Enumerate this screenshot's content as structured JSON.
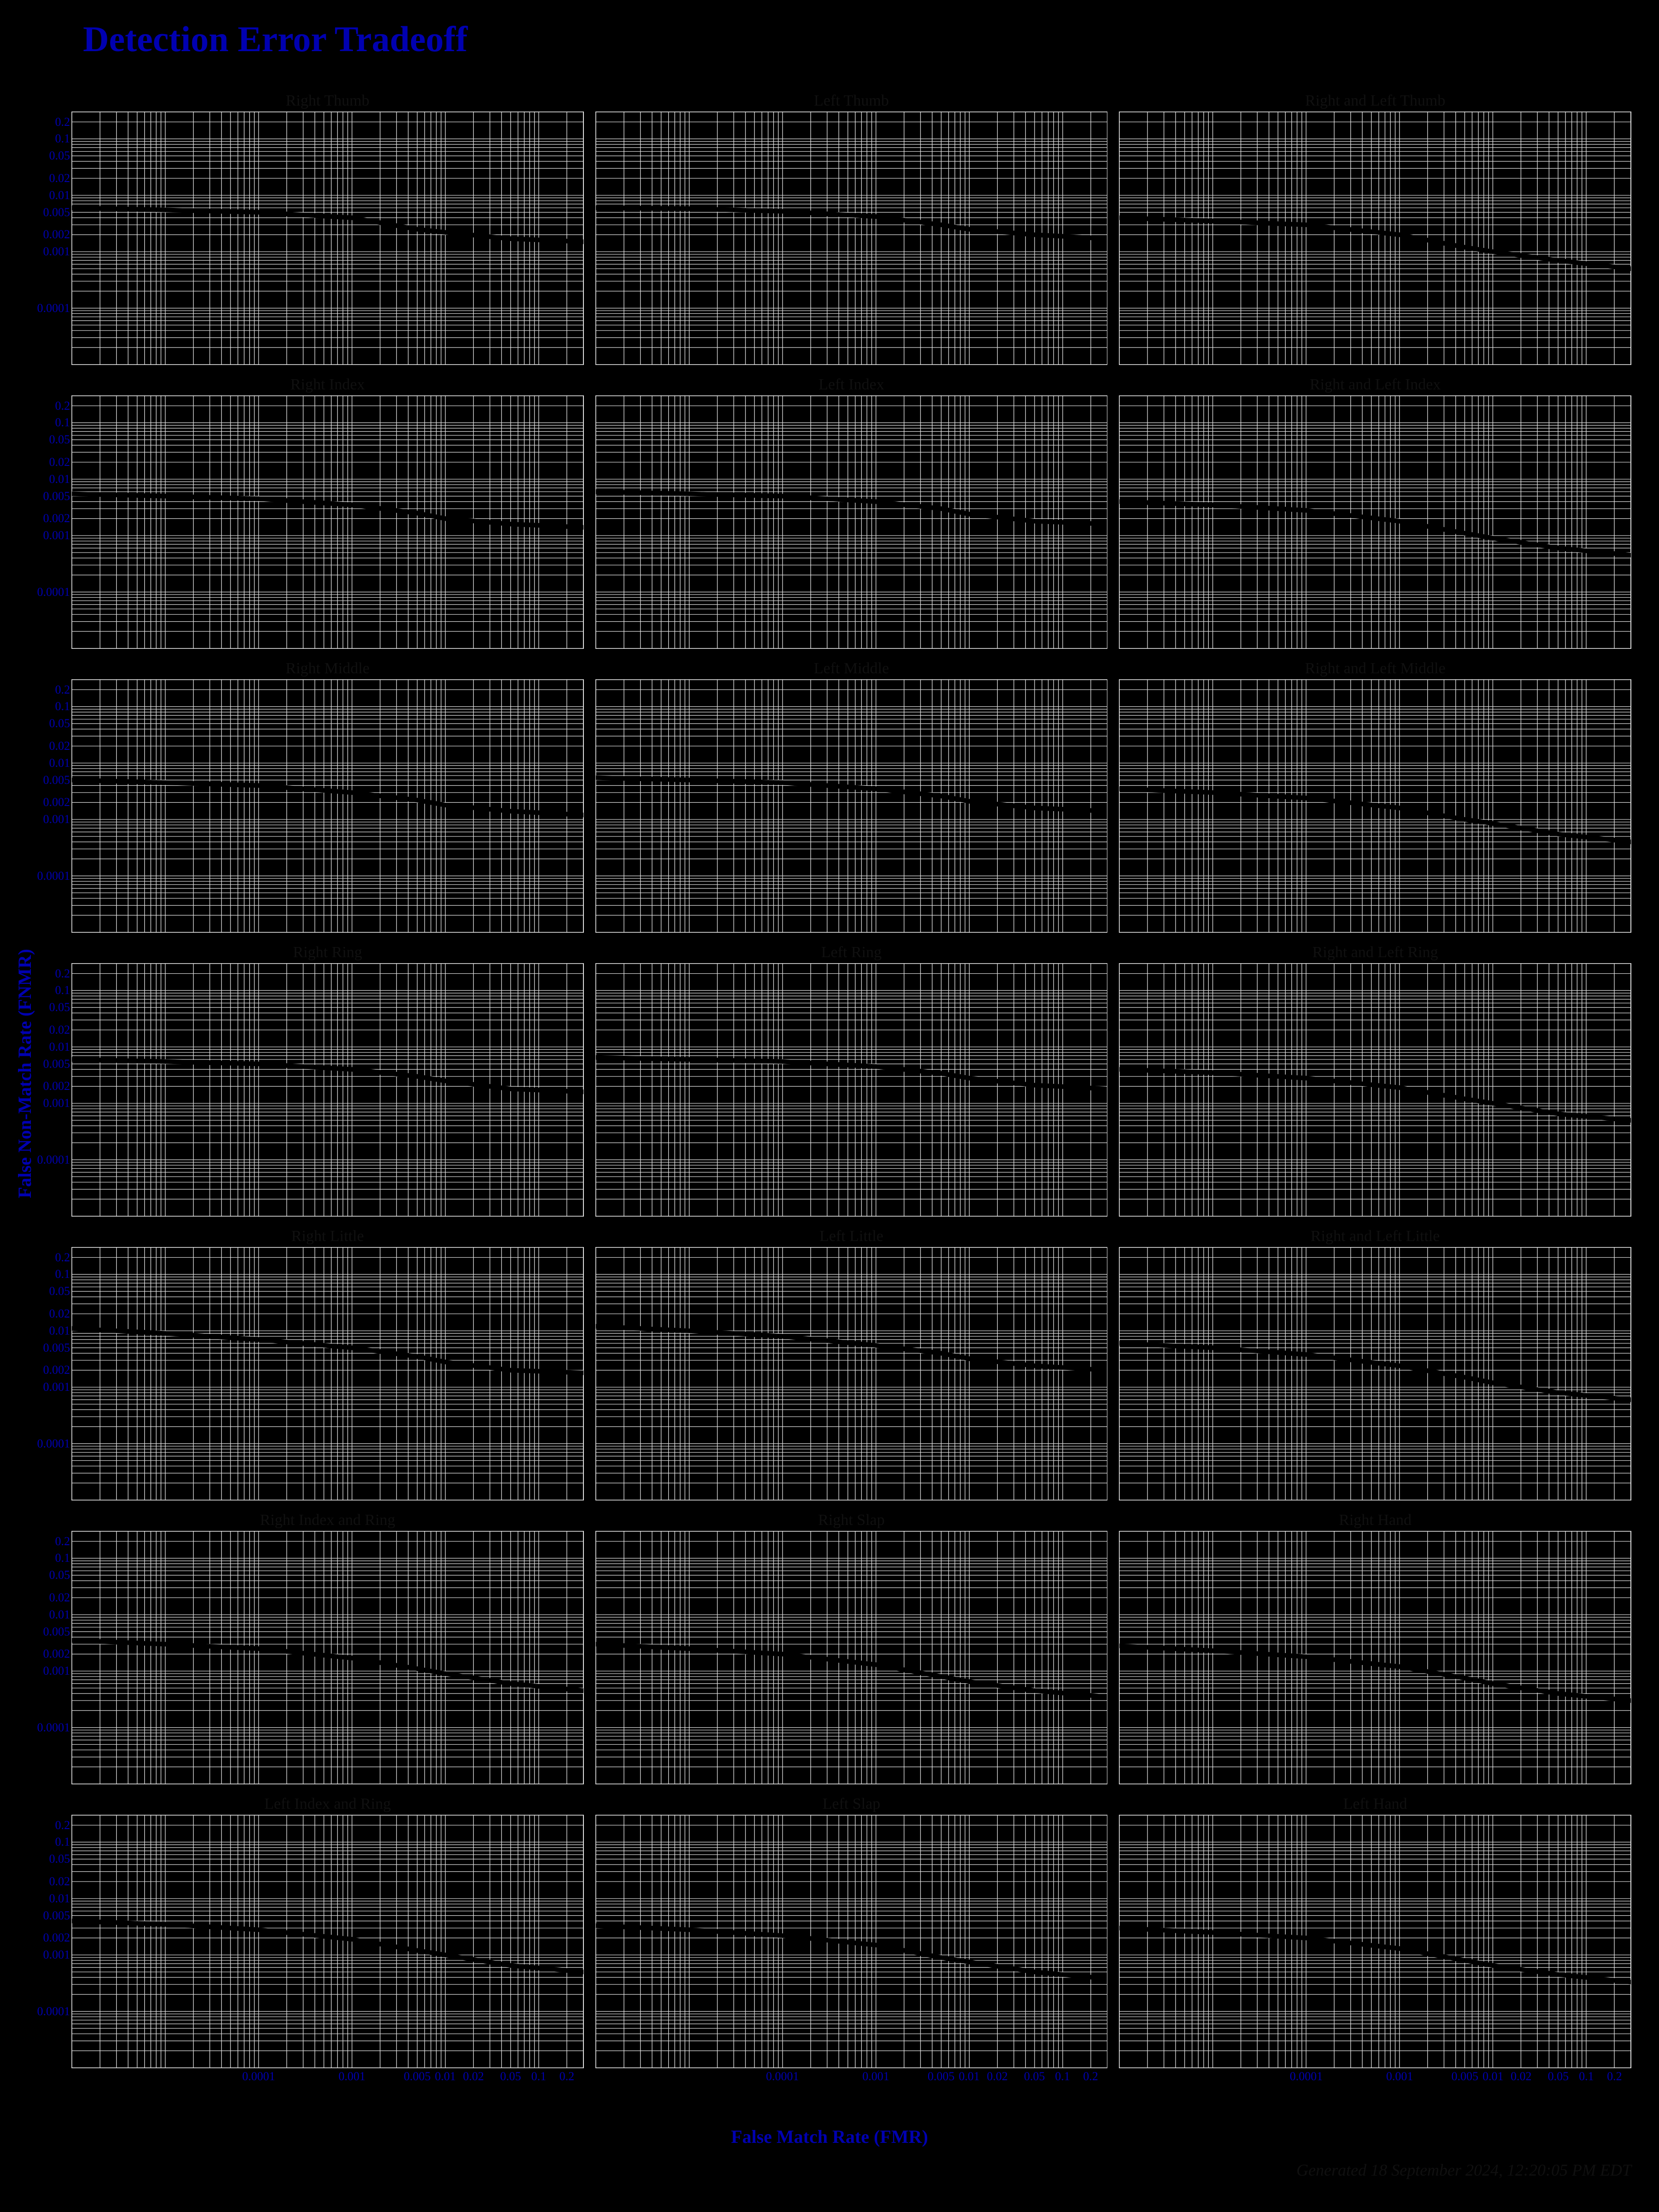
{
  "title": "Detection Error Tradeoff",
  "global_y_label": "False Non-Match Rate (FNMR)",
  "global_x_label": "False Match Rate (FMR)",
  "footer": "Generated 18 September 2024, 12:20:05 PM EDT",
  "background_color": "#000000",
  "title_color": "#0000b0",
  "tick_color": "#0000b0",
  "panel_title_color": "#101010",
  "grid_color": "#e0e0e0",
  "curve_color": "#000000",
  "title_fontsize": 78,
  "panel_title_fontsize": 34,
  "tick_fontsize": 26,
  "axis_label_fontsize": 40,
  "footer_fontsize": 36,
  "x_axis": {
    "scale": "log",
    "min": 1e-06,
    "max": 0.3,
    "ticks": [
      0.0001,
      0.001,
      0.005,
      0.01,
      0.02,
      0.05,
      0.1,
      0.2
    ],
    "tick_labels": [
      "0.0001",
      "0.001",
      "0.005",
      "0.01",
      "0.02",
      "0.05",
      "0.1",
      "0.2"
    ],
    "grid_at": [
      1e-06,
      2e-06,
      3e-06,
      4e-06,
      5e-06,
      6e-06,
      7e-06,
      8e-06,
      9e-06,
      1e-05,
      2e-05,
      3e-05,
      4e-05,
      5e-05,
      6e-05,
      7e-05,
      8e-05,
      9e-05,
      0.0001,
      0.0002,
      0.0003,
      0.0004,
      0.0005,
      0.0006,
      0.0007,
      0.0008,
      0.0009,
      0.001,
      0.002,
      0.003,
      0.004,
      0.005,
      0.006,
      0.007,
      0.008,
      0.009,
      0.01,
      0.02,
      0.03,
      0.04,
      0.05,
      0.06,
      0.07,
      0.08,
      0.09,
      0.1,
      0.2,
      0.3
    ]
  },
  "y_axis": {
    "scale": "log",
    "min": 1e-05,
    "max": 0.3,
    "ticks": [
      0.2,
      0.1,
      0.05,
      0.02,
      0.01,
      0.005,
      0.002,
      0.001,
      0.0001
    ],
    "tick_labels": [
      "0.2",
      "0.1",
      "0.05",
      "0.02",
      "0.01",
      "0.005",
      "0.002",
      "0.001",
      "0.0001"
    ],
    "grid_at": [
      1e-05,
      2e-05,
      3e-05,
      4e-05,
      5e-05,
      6e-05,
      7e-05,
      8e-05,
      9e-05,
      0.0001,
      0.0002,
      0.0003,
      0.0004,
      0.0005,
      0.0006,
      0.0007,
      0.0008,
      0.0009,
      0.001,
      0.002,
      0.003,
      0.004,
      0.005,
      0.006,
      0.007,
      0.008,
      0.009,
      0.01,
      0.02,
      0.03,
      0.04,
      0.05,
      0.06,
      0.07,
      0.08,
      0.09,
      0.1,
      0.2,
      0.3
    ]
  },
  "rows": [
    {
      "panels": [
        {
          "title": "Right Thumb",
          "curve": [
            [
              1e-06,
              0.006
            ],
            [
              1e-05,
              0.0055
            ],
            [
              0.0001,
              0.005
            ],
            [
              0.001,
              0.004
            ],
            [
              0.005,
              0.0025
            ],
            [
              0.01,
              0.0022
            ],
            [
              0.05,
              0.0017
            ],
            [
              0.3,
              0.0015
            ]
          ]
        },
        {
          "title": "Left Thumb",
          "curve": [
            [
              1e-06,
              0.006
            ],
            [
              1e-05,
              0.0058
            ],
            [
              0.0001,
              0.0052
            ],
            [
              0.001,
              0.0042
            ],
            [
              0.005,
              0.003
            ],
            [
              0.01,
              0.0025
            ],
            [
              0.05,
              0.002
            ],
            [
              0.3,
              0.0017
            ]
          ]
        },
        {
          "title": "Right and Left Thumb",
          "curve": [
            [
              1e-06,
              0.004
            ],
            [
              1e-05,
              0.0035
            ],
            [
              0.0001,
              0.003
            ],
            [
              0.001,
              0.002
            ],
            [
              0.005,
              0.0012
            ],
            [
              0.01,
              0.001
            ],
            [
              0.05,
              0.0007
            ],
            [
              0.3,
              0.0005
            ]
          ]
        }
      ]
    },
    {
      "panels": [
        {
          "title": "Right Index",
          "curve": [
            [
              1e-06,
              0.0055
            ],
            [
              1e-05,
              0.005
            ],
            [
              0.0001,
              0.0045
            ],
            [
              0.001,
              0.0035
            ],
            [
              0.005,
              0.0025
            ],
            [
              0.01,
              0.002
            ],
            [
              0.05,
              0.0016
            ],
            [
              0.3,
              0.0014
            ]
          ]
        },
        {
          "title": "Left Index",
          "curve": [
            [
              1e-06,
              0.006
            ],
            [
              1e-05,
              0.0055
            ],
            [
              0.0001,
              0.005
            ],
            [
              0.001,
              0.004
            ],
            [
              0.005,
              0.003
            ],
            [
              0.01,
              0.0024
            ],
            [
              0.05,
              0.0018
            ],
            [
              0.3,
              0.0016
            ]
          ]
        },
        {
          "title": "Right and Left Index",
          "curve": [
            [
              1e-06,
              0.004
            ],
            [
              1e-05,
              0.0035
            ],
            [
              0.0001,
              0.0028
            ],
            [
              0.001,
              0.0018
            ],
            [
              0.005,
              0.0011
            ],
            [
              0.01,
              0.0009
            ],
            [
              0.05,
              0.0006
            ],
            [
              0.3,
              0.00045
            ]
          ]
        }
      ]
    },
    {
      "panels": [
        {
          "title": "Right Middle",
          "curve": [
            [
              1e-06,
              0.005
            ],
            [
              1e-05,
              0.0045
            ],
            [
              0.0001,
              0.004
            ],
            [
              0.001,
              0.003
            ],
            [
              0.005,
              0.0022
            ],
            [
              0.01,
              0.0018
            ],
            [
              0.05,
              0.0014
            ],
            [
              0.3,
              0.0012
            ]
          ]
        },
        {
          "title": "Left Middle",
          "curve": [
            [
              1e-06,
              0.0055
            ],
            [
              1e-05,
              0.005
            ],
            [
              0.0001,
              0.0045
            ],
            [
              0.001,
              0.0035
            ],
            [
              0.005,
              0.0026
            ],
            [
              0.01,
              0.0021
            ],
            [
              0.05,
              0.0016
            ],
            [
              0.3,
              0.0014
            ]
          ]
        },
        {
          "title": "Right and Left Middle",
          "curve": [
            [
              1e-06,
              0.0035
            ],
            [
              1e-05,
              0.003
            ],
            [
              0.0001,
              0.0024
            ],
            [
              0.001,
              0.0016
            ],
            [
              0.005,
              0.001
            ],
            [
              0.01,
              0.00085
            ],
            [
              0.05,
              0.00055
            ],
            [
              0.3,
              0.0004
            ]
          ]
        }
      ]
    },
    {
      "panels": [
        {
          "title": "Right Ring",
          "curve": [
            [
              1e-06,
              0.006
            ],
            [
              1e-05,
              0.0055
            ],
            [
              0.0001,
              0.005
            ],
            [
              0.001,
              0.004
            ],
            [
              0.005,
              0.003
            ],
            [
              0.01,
              0.0025
            ],
            [
              0.05,
              0.0018
            ],
            [
              0.3,
              0.0016
            ]
          ]
        },
        {
          "title": "Left Ring",
          "curve": [
            [
              1e-06,
              0.0065
            ],
            [
              1e-05,
              0.006
            ],
            [
              0.0001,
              0.0055
            ],
            [
              0.001,
              0.0045
            ],
            [
              0.005,
              0.0034
            ],
            [
              0.01,
              0.0028
            ],
            [
              0.05,
              0.0021
            ],
            [
              0.3,
              0.0018
            ]
          ]
        },
        {
          "title": "Right and Left Ring",
          "curve": [
            [
              1e-06,
              0.004
            ],
            [
              1e-05,
              0.0035
            ],
            [
              0.0001,
              0.0028
            ],
            [
              0.001,
              0.0019
            ],
            [
              0.005,
              0.0012
            ],
            [
              0.01,
              0.001
            ],
            [
              0.05,
              0.00065
            ],
            [
              0.3,
              0.0005
            ]
          ]
        }
      ]
    },
    {
      "panels": [
        {
          "title": "Right Little",
          "curve": [
            [
              1e-06,
              0.011
            ],
            [
              1e-05,
              0.009
            ],
            [
              0.0001,
              0.007
            ],
            [
              0.001,
              0.005
            ],
            [
              0.005,
              0.0035
            ],
            [
              0.01,
              0.0028
            ],
            [
              0.05,
              0.002
            ],
            [
              0.3,
              0.0018
            ]
          ]
        },
        {
          "title": "Left Little",
          "curve": [
            [
              1e-06,
              0.012
            ],
            [
              1e-05,
              0.01
            ],
            [
              0.0001,
              0.008
            ],
            [
              0.001,
              0.0055
            ],
            [
              0.005,
              0.004
            ],
            [
              0.01,
              0.0032
            ],
            [
              0.05,
              0.0024
            ],
            [
              0.3,
              0.002
            ]
          ]
        },
        {
          "title": "Right and Left Little",
          "curve": [
            [
              1e-06,
              0.006
            ],
            [
              1e-05,
              0.005
            ],
            [
              0.0001,
              0.0038
            ],
            [
              0.001,
              0.0024
            ],
            [
              0.005,
              0.0015
            ],
            [
              0.01,
              0.0012
            ],
            [
              0.05,
              0.0008
            ],
            [
              0.3,
              0.0006
            ]
          ]
        }
      ]
    },
    {
      "panels": [
        {
          "title": "Right Index and Ring",
          "curve": [
            [
              1e-06,
              0.0035
            ],
            [
              1e-05,
              0.003
            ],
            [
              0.0001,
              0.0025
            ],
            [
              0.001,
              0.0017
            ],
            [
              0.005,
              0.0011
            ],
            [
              0.01,
              0.0009
            ],
            [
              0.05,
              0.0006
            ],
            [
              0.3,
              0.00045
            ]
          ]
        },
        {
          "title": "Right Slap",
          "curve": [
            [
              1e-06,
              0.003
            ],
            [
              1e-05,
              0.0025
            ],
            [
              0.0001,
              0.002
            ],
            [
              0.001,
              0.0013
            ],
            [
              0.005,
              0.0008
            ],
            [
              0.01,
              0.00065
            ],
            [
              0.05,
              0.00045
            ],
            [
              0.3,
              0.00035
            ]
          ]
        },
        {
          "title": "Right Hand",
          "curve": [
            [
              1e-06,
              0.0028
            ],
            [
              1e-05,
              0.0023
            ],
            [
              0.0001,
              0.0018
            ],
            [
              0.001,
              0.0012
            ],
            [
              0.005,
              0.00075
            ],
            [
              0.01,
              0.0006
            ],
            [
              0.05,
              0.0004
            ],
            [
              0.3,
              0.0003
            ]
          ]
        }
      ]
    },
    {
      "panels": [
        {
          "title": "Left Index and Ring",
          "curve": [
            [
              1e-06,
              0.004
            ],
            [
              1e-05,
              0.0035
            ],
            [
              0.0001,
              0.0028
            ],
            [
              0.001,
              0.0019
            ],
            [
              0.005,
              0.0012
            ],
            [
              0.01,
              0.001
            ],
            [
              0.05,
              0.00065
            ],
            [
              0.3,
              0.0005
            ]
          ]
        },
        {
          "title": "Left Slap",
          "curve": [
            [
              1e-06,
              0.0033
            ],
            [
              1e-05,
              0.0028
            ],
            [
              0.0001,
              0.0022
            ],
            [
              0.001,
              0.0015
            ],
            [
              0.005,
              0.0009
            ],
            [
              0.01,
              0.00075
            ],
            [
              0.05,
              0.0005
            ],
            [
              0.3,
              0.00038
            ]
          ]
        },
        {
          "title": "Left Hand",
          "curve": [
            [
              1e-06,
              0.003
            ],
            [
              1e-05,
              0.0025
            ],
            [
              0.0001,
              0.002
            ],
            [
              0.001,
              0.0013
            ],
            [
              0.005,
              0.0008
            ],
            [
              0.01,
              0.00065
            ],
            [
              0.05,
              0.00045
            ],
            [
              0.3,
              0.00033
            ]
          ]
        }
      ]
    }
  ]
}
